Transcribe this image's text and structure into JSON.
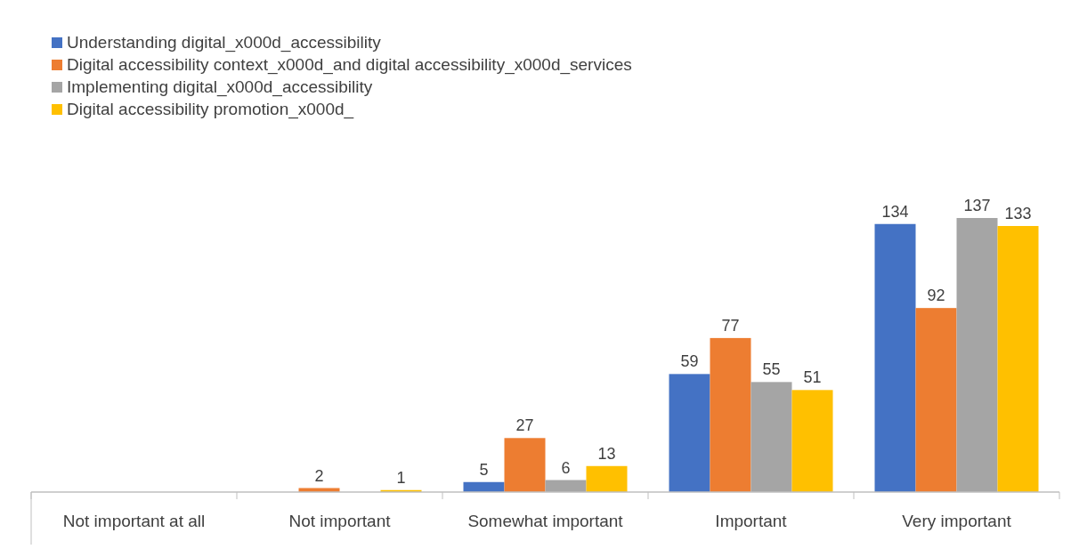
{
  "chart_data": {
    "type": "bar",
    "categories": [
      "Not important at all",
      "Not important",
      "Somewhat important",
      "Important",
      "Very important"
    ],
    "legend": "top left",
    "series": [
      {
        "name": "Understanding digital_x000d_accessibility",
        "color": "#4472c4",
        "values": [
          0,
          0,
          5,
          59,
          134
        ],
        "value_labels": [
          null,
          null,
          "5",
          "59",
          "134"
        ]
      },
      {
        "name": "Digital accessibility context_x000d_and digital accessibility_x000d_services",
        "color": "#ed7d31",
        "values": [
          0,
          2,
          27,
          77,
          92
        ],
        "value_labels": [
          null,
          "2",
          "27",
          "77",
          "92"
        ]
      },
      {
        "name": "Implementing digital_x000d_accessibility",
        "color": "#a5a5a5",
        "values": [
          0,
          0,
          6,
          55,
          137
        ],
        "value_labels": [
          null,
          null,
          "6",
          "55",
          "137"
        ]
      },
      {
        "name": "Digital accessibility promotion_x000d_",
        "color": "#ffc000",
        "values": [
          0,
          1,
          13,
          51,
          133
        ],
        "value_labels": [
          null,
          "1",
          "13",
          "51",
          "133"
        ]
      }
    ]
  }
}
